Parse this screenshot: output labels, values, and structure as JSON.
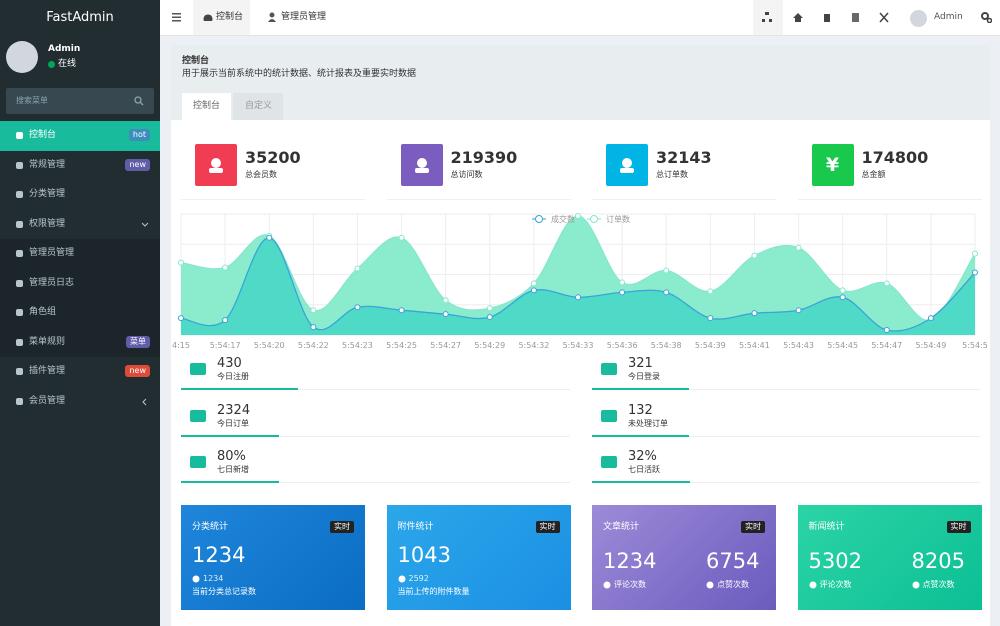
{
  "sidebar": {
    "logo": "FastAdmin",
    "user": {
      "name": "Admin",
      "status": "在线"
    },
    "search_placeholder": "搜索菜单",
    "menu": [
      {
        "label": "控制台",
        "badge": "hot"
      },
      {
        "label": "常规管理",
        "badge": "new"
      },
      {
        "label": "分类管理"
      },
      {
        "label": "权限管理"
      },
      {
        "label": "管理员管理"
      },
      {
        "label": "管理员日志"
      },
      {
        "label": "角色组"
      },
      {
        "label": "菜单规则",
        "badge": "菜单"
      },
      {
        "label": "插件管理",
        "badge": "new"
      },
      {
        "label": "会员管理"
      }
    ]
  },
  "topbar": {
    "tabs": [
      "控制台",
      "管理员管理"
    ],
    "user": "Admin"
  },
  "content": {
    "title": "控制台",
    "subtitle": "用于展示当前系统中的统计数据、统计报表及重要实时数据",
    "tabs": [
      "控制台",
      "自定义"
    ],
    "currency_icon": "¥",
    "stats": [
      {
        "value": 35200,
        "label": "总会员数"
      },
      {
        "value": 219390,
        "label": "总访问数"
      },
      {
        "value": 32143,
        "label": "总订单数"
      },
      {
        "value": 174800,
        "label": "总金额"
      }
    ],
    "chart_data": {
      "type": "area",
      "categories": [
        "4:15",
        "5:54:17",
        "5:54:20",
        "5:54:22",
        "5:54:23",
        "5:54:25",
        "5:54:27",
        "5:54:29",
        "5:54:32",
        "5:54:33",
        "5:54:36",
        "5:54:38",
        "5:54:39",
        "5:54:41",
        "5:54:43",
        "5:54:45",
        "5:54:47",
        "5:54:49",
        "5:54:5"
      ],
      "series": [
        {
          "name": "订单数",
          "color": "#86e6cf",
          "area_color": "#7eeac8",
          "values": [
            73,
            68,
            100,
            25,
            67,
            98,
            35,
            27,
            52,
            120,
            53,
            65,
            44,
            80,
            88,
            45,
            52,
            15,
            82
          ]
        },
        {
          "name": "成交数",
          "color": "#3aa3d8",
          "area_color": "#48d8c6",
          "values": [
            17,
            15,
            98,
            8,
            28,
            25,
            21,
            18,
            45,
            38,
            43,
            43,
            17,
            22,
            25,
            38,
            5,
            17,
            63
          ]
        }
      ],
      "ylim": [
        0,
        122
      ],
      "smooth": true,
      "grid": true
    },
    "metrics": [
      {
        "value": 430,
        "label": "今日注册"
      },
      {
        "value": 321,
        "label": "今日登录"
      },
      {
        "value": 2324,
        "label": "今日订单"
      },
      {
        "value": 132,
        "label": "未处理订单"
      },
      {
        "value": "80%",
        "label": "七日新增"
      },
      {
        "value": "32%",
        "label": "七日活跃"
      }
    ],
    "cards": [
      {
        "title": "分类统计",
        "badge": "实时",
        "value": 1234,
        "sub": 1234,
        "desc": "当前分类总记录数"
      },
      {
        "title": "附件统计",
        "badge": "实时",
        "value": 1043,
        "sub": 2592,
        "desc": "当前上传的附件数量"
      },
      {
        "title": "文章统计",
        "badge": "实时",
        "pairs": [
          {
            "value": 1234,
            "label": "评论次数"
          },
          {
            "value": 6754,
            "label": "点赞次数"
          }
        ]
      },
      {
        "title": "新闻统计",
        "badge": "实时",
        "pairs": [
          {
            "value": 5302,
            "label": "评论次数"
          },
          {
            "value": 8205,
            "label": "点赞次数"
          }
        ]
      }
    ]
  }
}
